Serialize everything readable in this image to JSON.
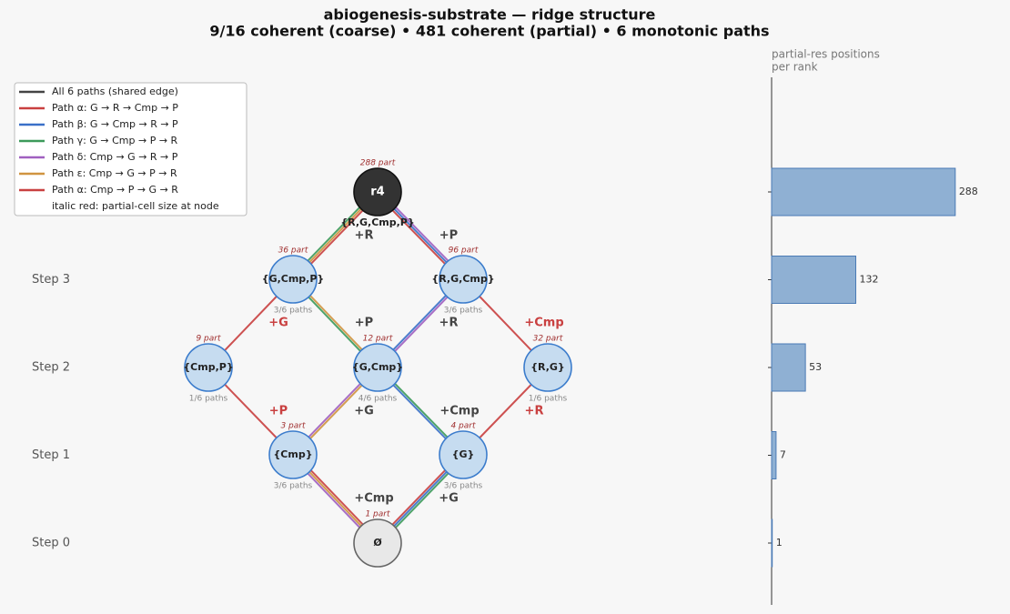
{
  "title": [
    "abiogenesis-substrate — ridge structure",
    "9/16 coherent (coarse)  •  481 coherent (partial)  •  6 monotonic paths"
  ],
  "legend": [
    {
      "label": "All 6 paths (shared edge)",
      "color": "#444444"
    },
    {
      "label": "Path α: G → R → Cmp → P",
      "color": "#c94040"
    },
    {
      "label": "Path β: G → Cmp → R → P",
      "color": "#3a70c8"
    },
    {
      "label": "Path γ: G → Cmp → P → R",
      "color": "#3c9a5a"
    },
    {
      "label": "Path δ: Cmp → G → R → P",
      "color": "#a060c0"
    },
    {
      "label": "Path ε: Cmp → G → P → R",
      "color": "#d09440"
    },
    {
      "label": "Path α: Cmp → P → G → R",
      "color": "#c94040"
    },
    {
      "label": "italic red: partial-cell size at node"
    }
  ],
  "steps": [
    "Step 0",
    "Step 1",
    "Step 2",
    "Step 3"
  ],
  "nodes": [
    {
      "label": "r4",
      "sublabel": "{R,G,Cmp,P}",
      "part": "288 part"
    },
    {
      "label": "{G,Cmp,P}",
      "part": "36 part",
      "paths": "3/6 paths"
    },
    {
      "label": "{R,G,Cmp}",
      "part": "96 part",
      "paths": "3/6 paths"
    },
    {
      "label": "{Cmp,P}",
      "part": "9 part",
      "paths": "1/6 paths"
    },
    {
      "label": "{G,Cmp}",
      "part": "12 part",
      "paths": "4/6 paths"
    },
    {
      "label": "{R,G}",
      "part": "32 part",
      "paths": "1/6 paths"
    },
    {
      "label": "{Cmp}",
      "part": "3 part",
      "paths": "3/6 paths"
    },
    {
      "label": "{G}",
      "part": "4 part",
      "paths": "3/6 paths"
    },
    {
      "label": "Ø",
      "part": "1 part"
    }
  ],
  "edge_labels": [
    {
      "text": "+R",
      "color": "#444444"
    },
    {
      "text": "+P",
      "color": "#444444"
    },
    {
      "text": "+G",
      "color": "#c94040"
    },
    {
      "text": "+P",
      "color": "#444444"
    },
    {
      "text": "+R",
      "color": "#444444"
    },
    {
      "text": "+Cmp",
      "color": "#c94040"
    },
    {
      "text": "+P",
      "color": "#c94040"
    },
    {
      "text": "+G",
      "color": "#444444"
    },
    {
      "text": "+Cmp",
      "color": "#444444"
    },
    {
      "text": "+R",
      "color": "#c94040"
    },
    {
      "text": "+Cmp",
      "color": "#444444"
    },
    {
      "text": "+G",
      "color": "#444444"
    }
  ],
  "chart_data": {
    "type": "bar",
    "orientation": "horizontal",
    "title_lines": [
      "partial-res positions",
      "per rank"
    ],
    "values": [
      1,
      7,
      53,
      132,
      288
    ],
    "color": "#8fb0d3",
    "xlim": [
      0,
      316.8
    ]
  }
}
